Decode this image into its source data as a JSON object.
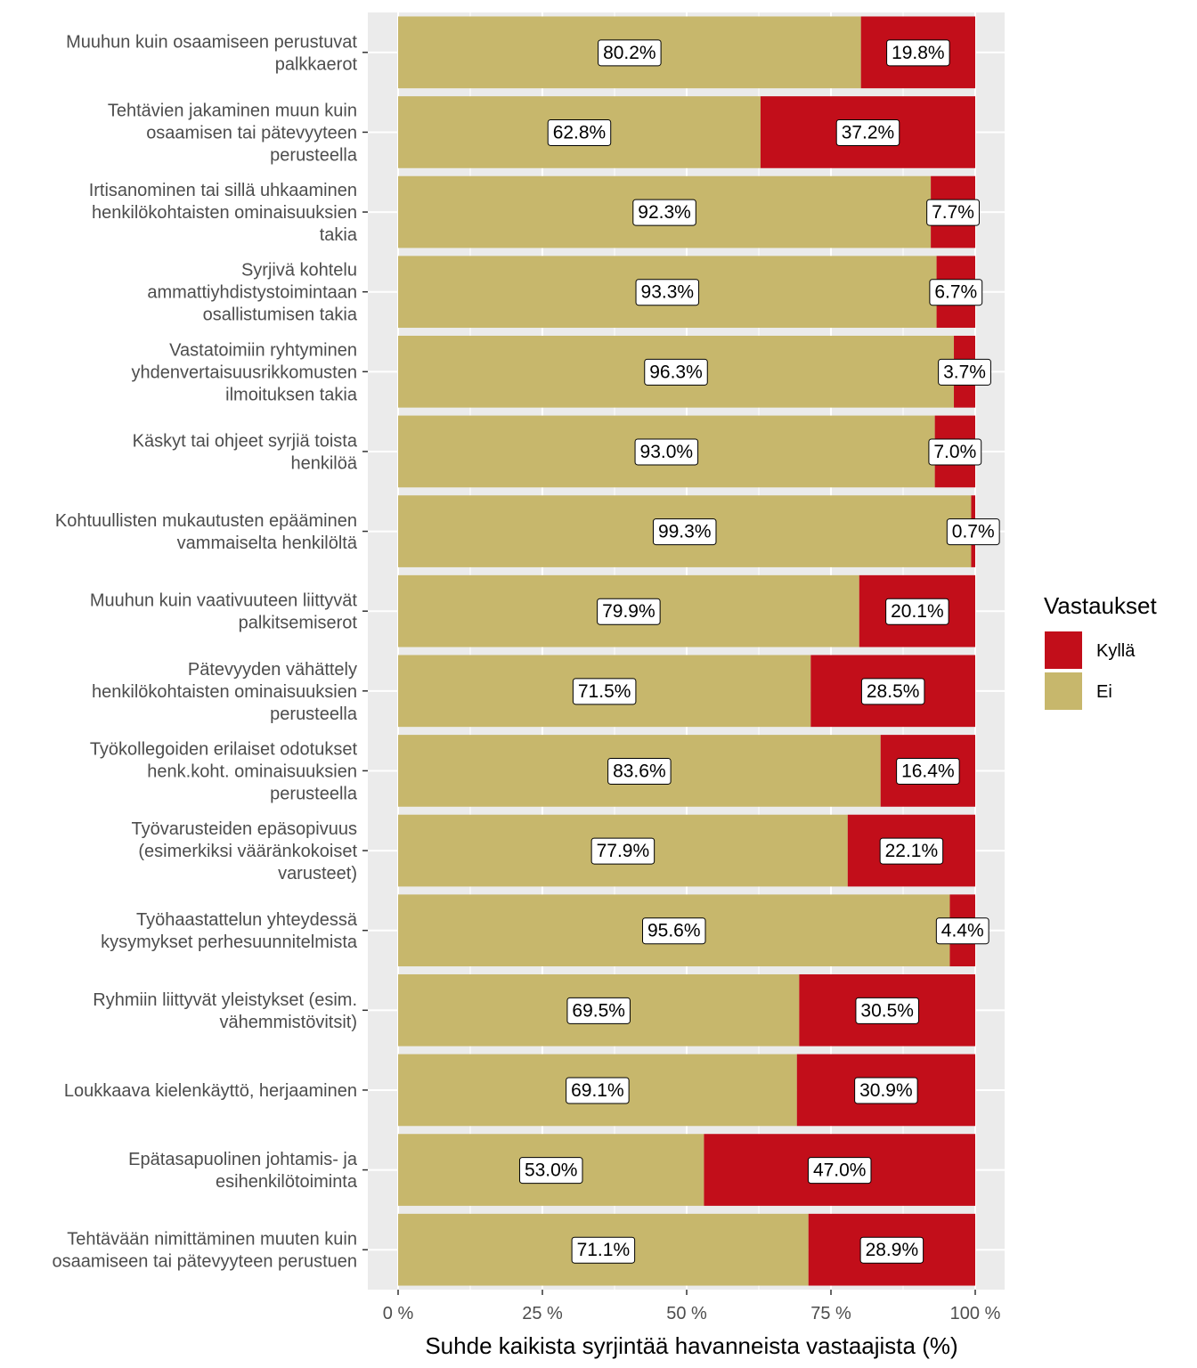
{
  "chart_data": {
    "type": "bar",
    "orientation": "horizontal",
    "stacked": true,
    "percent_stacked": true,
    "categories": [
      [
        "Muuhun kuin osaamiseen perustuvat",
        "palkkaerot"
      ],
      [
        "Tehtävien jakaminen muun kuin",
        "osaamisen tai pätevyyteen",
        "perusteella"
      ],
      [
        "Irtisanominen tai sillä uhkaaminen",
        "henkilökohtaisten ominaisuuksien",
        "takia"
      ],
      [
        "Syrjivä kohtelu",
        "ammattiyhdistystoimintaan",
        "osallistumisen takia"
      ],
      [
        "Vastatoimiin ryhtyminen",
        "yhdenvertaisuusrikkomusten",
        "ilmoituksen takia"
      ],
      [
        "Käskyt tai ohjeet syrjiä toista",
        "henkilöä"
      ],
      [
        "Kohtuullisten mukautusten epääminen",
        "vammaiselta henkilöltä"
      ],
      [
        "Muuhun kuin vaativuuteen liittyvät",
        "palkitsemiserot"
      ],
      [
        "Pätevyyden vähättely",
        "henkilökohtaisten ominaisuuksien",
        "perusteella"
      ],
      [
        "Työkollegoiden erilaiset odotukset",
        "henk.koht. ominaisuuksien",
        "perusteella"
      ],
      [
        "Työvarusteiden epäsopivuus",
        "(esimerkiksi vääränkokoiset",
        "varusteet)"
      ],
      [
        "Työhaastattelun yhteydessä",
        "kysymykset perhesuunnitelmista"
      ],
      [
        "Ryhmiin liittyvät yleistykset (esim.",
        "vähemmistövitsit)"
      ],
      [
        "Loukkaava kielenkäyttö, herjaaminen"
      ],
      [
        "Epätasapuolinen johtamis- ja",
        "esihenkilötoiminta"
      ],
      [
        "Tehtävään nimittäminen muuten kuin",
        "osaamiseen tai pätevyyteen perustuen"
      ]
    ],
    "series": [
      {
        "name": "Ei",
        "color": "#c7b76c",
        "values": [
          80.2,
          62.8,
          92.3,
          93.3,
          96.3,
          93.0,
          99.3,
          79.9,
          71.5,
          83.6,
          77.9,
          95.6,
          69.5,
          69.1,
          53.0,
          71.1
        ],
        "labels": [
          "80.2%",
          "62.8%",
          "92.3%",
          "93.3%",
          "96.3%",
          "93.0%",
          "99.3%",
          "79.9%",
          "71.5%",
          "83.6%",
          "77.9%",
          "95.6%",
          "69.5%",
          "69.1%",
          "53.0%",
          "71.1%"
        ]
      },
      {
        "name": "Kyllä",
        "color": "#c20e1a",
        "values": [
          19.8,
          37.2,
          7.7,
          6.7,
          3.7,
          7.0,
          0.7,
          20.1,
          28.5,
          16.4,
          22.1,
          4.4,
          30.5,
          30.9,
          47.0,
          28.9
        ],
        "labels": [
          "19.8%",
          "37.2%",
          "7.7%",
          "6.7%",
          "3.7%",
          "7.0%",
          "0.7%",
          "20.1%",
          "28.5%",
          "16.4%",
          "22.1%",
          "4.4%",
          "30.5%",
          "30.9%",
          "47.0%",
          "28.9%"
        ]
      }
    ],
    "x_ticks": [
      0,
      25,
      50,
      75,
      100
    ],
    "x_tick_labels": [
      "0 %",
      "25 %",
      "50 %",
      "75 %",
      "100 %"
    ],
    "xlim": [
      0,
      100
    ],
    "xlabel": "Suhde kaikista syrjintää havanneista vastaajista (%)",
    "ylabel": "",
    "grid": true,
    "panel_background": "#ebebeb",
    "legend": {
      "title": "Vastaukset",
      "position": "right",
      "entries": [
        {
          "label": "Kyllä",
          "color": "#c20e1a"
        },
        {
          "label": "Ei",
          "color": "#c7b76c"
        }
      ]
    }
  }
}
